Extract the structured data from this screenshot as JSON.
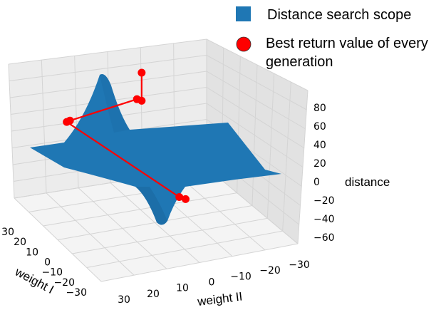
{
  "chart_data": {
    "type": "surface3d",
    "legend": {
      "placement": "top-right",
      "entries": [
        {
          "label": "Distance search scope",
          "marker": "square",
          "color": "#1f77b4"
        },
        {
          "label_lines": [
            "Best return value of every",
            "generation"
          ],
          "marker": "circle",
          "color": "#ff0000"
        }
      ]
    },
    "axes": {
      "x": {
        "label": "weight I",
        "ticks": [
          "30",
          "20",
          "10",
          "0",
          "−10",
          "−20",
          "−30"
        ],
        "lim": [
          -30,
          30
        ]
      },
      "y": {
        "label": "weight II",
        "ticks": [
          "30",
          "20",
          "10",
          "0",
          "−10",
          "−20",
          "−30"
        ],
        "lim": [
          -30,
          30
        ]
      },
      "z": {
        "label": "distance",
        "ticks": [
          "80",
          "60",
          "40",
          "20",
          "0",
          "−20",
          "−40",
          "−60"
        ],
        "lim": [
          -70,
          90
        ]
      }
    },
    "surface": {
      "color": "#1f77b4",
      "peak_max": 90,
      "trough_min": -65
    },
    "series": [
      {
        "name": "Best return value of every generation",
        "color": "#ff0000",
        "points": [
          {
            "w1": -5,
            "w2": 20,
            "z": 80
          },
          {
            "w1": -5,
            "w2": 20,
            "z": 45
          },
          {
            "w1": -4,
            "w2": 21,
            "z": 46
          },
          {
            "w1": 15,
            "w2": 25,
            "z": 25
          },
          {
            "w1": 16,
            "w2": 25,
            "z": 24
          },
          {
            "w1": 6,
            "w2": -28,
            "z": 8
          },
          {
            "w1": 5,
            "w2": -30,
            "z": 8
          }
        ]
      }
    ],
    "grid": true
  }
}
